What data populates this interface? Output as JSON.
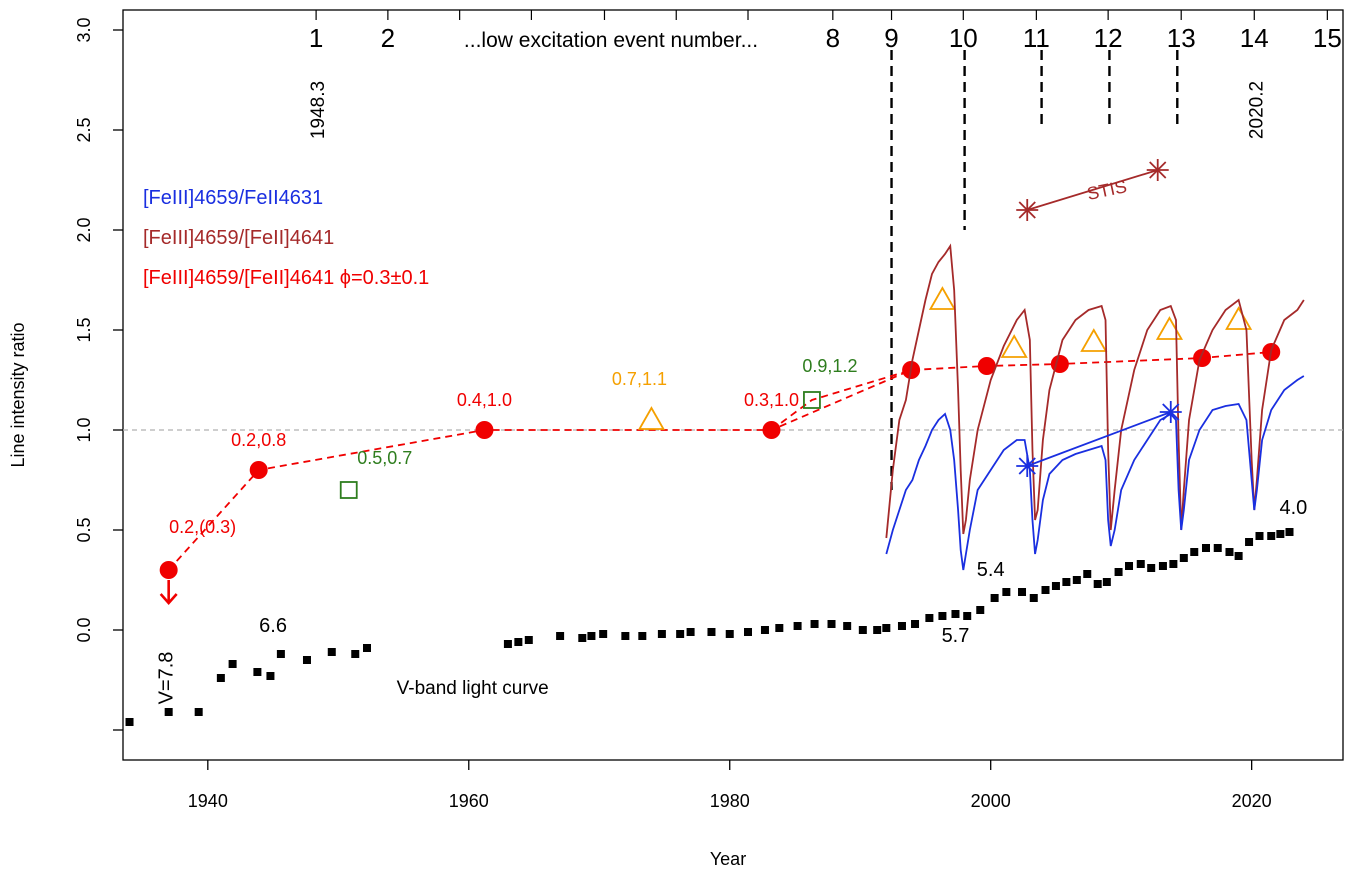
{
  "chart_data": {
    "type": "scatter",
    "xlabel": "Year",
    "ylabel": "Line intensity ratio",
    "xlim": [
      1933.5,
      2027
    ],
    "ylim": [
      -0.65,
      3.1
    ],
    "x_ticks": [
      1940,
      1960,
      1980,
      2000,
      2020
    ],
    "y_ticks": [
      0.0,
      0.5,
      1.0,
      1.5,
      2.0,
      2.5,
      3.0
    ],
    "y_tick_labels": [
      "0.0",
      "0.5",
      "1.0",
      "1.5",
      "2.0",
      "2.5",
      "3.0"
    ],
    "reference_line_y": 1.0,
    "legend_placement": "top-left",
    "legend": [
      {
        "label": "[FeIII]4659/FeII4631",
        "color": "#1a2fe0"
      },
      {
        "label": "[FeIII]4659/[FeII]4641",
        "color": "#a52a2a"
      },
      {
        "label": "[FeIII]4659/[FeII]4641  ϕ=0.3±0.1",
        "color": "#f00000"
      }
    ],
    "top_axis": {
      "title": "...low excitation event number...",
      "events": [
        {
          "label": "1",
          "year": 1948.3
        },
        {
          "label": "2",
          "year": 1953.8
        },
        {
          "label": "8",
          "year": 1987.9
        },
        {
          "label": "9",
          "year": 1992.4
        },
        {
          "label": "10",
          "year": 1997.9
        },
        {
          "label": "11",
          "year": 2003.5
        },
        {
          "label": "12",
          "year": 2009.0
        },
        {
          "label": "13",
          "year": 2014.6
        },
        {
          "label": "14",
          "year": 2020.2
        },
        {
          "label": "15",
          "year": 2025.8
        }
      ],
      "extra_ticks": [
        1959.3,
        1964.8,
        1970.4,
        1975.9,
        1981.4
      ],
      "date_labels": [
        {
          "text": "1948.3",
          "year": 1948.3
        },
        {
          "text": "2020.2",
          "year": 2020.2
        }
      ],
      "dashed_markers": [
        {
          "year": 1992.4,
          "to": 0.7
        },
        {
          "year": 1998.0,
          "to": 2.0
        },
        {
          "year": 2003.9,
          "to": 2.5
        },
        {
          "year": 2009.1,
          "to": 2.5
        },
        {
          "year": 2014.3,
          "to": 2.5
        }
      ]
    },
    "series": [
      {
        "name": "[FeIII]4659/[FeII]4641  ϕ=0.3±0.1",
        "color": "#f00000",
        "marker": "filled-circle",
        "line": "dashed",
        "x": [
          1937.0,
          1943.9,
          1961.2,
          1983.2,
          1993.9,
          1999.7,
          2005.3,
          2016.2,
          2021.5
        ],
        "y": [
          0.3,
          0.8,
          1.0,
          1.0,
          1.3,
          1.32,
          1.33,
          1.36,
          1.39
        ],
        "dashed_path": [
          [
            1937.0,
            0.3
          ],
          [
            1943.9,
            0.8
          ],
          [
            1961.2,
            1.0
          ],
          [
            1983.2,
            1.0
          ],
          [
            1993.9,
            1.3
          ],
          [
            1999.7,
            1.32
          ],
          [
            2005.3,
            1.33
          ],
          [
            2016.2,
            1.36
          ],
          [
            2021.5,
            1.39
          ]
        ],
        "extra_dashed": [
          [
            1983.2,
            1.0
          ],
          [
            1986.3,
            1.15
          ],
          [
            1993.9,
            1.3
          ]
        ],
        "upper_limit_at": 1937.0,
        "point_labels": [
          {
            "text": "0.2,(0.3)",
            "x": 1937.0,
            "y": 0.3
          },
          {
            "text": "0.2,0.8",
            "x": 1943.9,
            "y": 0.8
          },
          {
            "text": "0.4,1.0",
            "x": 1961.2,
            "y": 1.0
          },
          {
            "text": "0.3,1.0",
            "x": 1983.2,
            "y": 1.0
          }
        ]
      },
      {
        "name": "0.5,0.7 / 0.9,1.2",
        "color": "#2e7d1e",
        "marker": "open-square",
        "x": [
          1950.8,
          1986.3
        ],
        "y": [
          0.7,
          1.15
        ],
        "point_labels": [
          {
            "text": "0.5,0.7",
            "x": 1950.8,
            "y": 0.7
          },
          {
            "text": "0.9,1.2",
            "x": 1986.3,
            "y": 1.15
          }
        ]
      },
      {
        "name": "0.7,1.1",
        "color": "#f5a000",
        "marker": "open-triangle",
        "x": [
          1974.0,
          1996.3,
          2001.8,
          2007.9,
          2013.7,
          2019.0
        ],
        "y": [
          1.05,
          1.65,
          1.41,
          1.44,
          1.5,
          1.55
        ],
        "point_labels": [
          {
            "text": "0.7,1.1",
            "x": 1974.0,
            "y": 1.05
          }
        ]
      },
      {
        "name": "STIS",
        "color": "#a52a2a",
        "marker": "asterisk",
        "x": [
          2002.8,
          2012.8
        ],
        "y": [
          2.1,
          2.3
        ],
        "label": "STIS"
      },
      {
        "name": "[FeIII]4659/[FeII]4641",
        "color": "#a52a2a",
        "marker": "line",
        "x": [
          1992.0,
          1992.5,
          1993.0,
          1993.5,
          1994.0,
          1994.5,
          1995.0,
          1995.5,
          1996.0,
          1996.5,
          1996.9,
          1997.2,
          1997.5,
          1997.7,
          1997.9,
          1998.1,
          1998.4,
          1999.0,
          2000.0,
          2001.0,
          2002.0,
          2002.6,
          2003.0,
          2003.2,
          2003.4,
          2003.6,
          2004.0,
          2004.5,
          2005.5,
          2006.5,
          2007.5,
          2008.5,
          2008.8,
          2009.0,
          2009.2,
          2009.5,
          2010.0,
          2011.0,
          2012.0,
          2013.0,
          2013.8,
          2014.2,
          2014.4,
          2014.6,
          2014.8,
          2015.2,
          2016.0,
          2017.0,
          2018.0,
          2019.0,
          2019.6,
          2020.0,
          2020.2,
          2020.4,
          2020.8,
          2021.5,
          2022.5,
          2023.5,
          2024.0
        ],
        "y": [
          0.46,
          0.8,
          1.05,
          1.15,
          1.35,
          1.5,
          1.65,
          1.78,
          1.84,
          1.88,
          1.92,
          1.7,
          1.2,
          0.8,
          0.48,
          0.55,
          0.75,
          1.0,
          1.25,
          1.42,
          1.55,
          1.6,
          1.45,
          0.9,
          0.55,
          0.6,
          0.95,
          1.2,
          1.45,
          1.55,
          1.6,
          1.62,
          1.55,
          0.9,
          0.5,
          0.7,
          1.0,
          1.3,
          1.5,
          1.6,
          1.62,
          1.55,
          0.95,
          0.5,
          0.7,
          1.05,
          1.35,
          1.5,
          1.6,
          1.65,
          1.5,
          0.85,
          0.6,
          0.75,
          1.1,
          1.4,
          1.55,
          1.6,
          1.65
        ]
      },
      {
        "name": "[FeIII]4659/FeII4631",
        "color": "#1a2fe0",
        "marker": "line",
        "x": [
          1992.0,
          1992.5,
          1993.0,
          1993.5,
          1994.0,
          1994.5,
          1995.0,
          1995.5,
          1996.0,
          1996.5,
          1996.9,
          1997.2,
          1997.5,
          1997.7,
          1997.9,
          1998.1,
          1998.4,
          1999.0,
          2000.0,
          2001.0,
          2002.0,
          2002.6,
          2003.0,
          2003.2,
          2003.4,
          2003.6,
          2004.0,
          2004.5,
          2005.5,
          2006.5,
          2007.5,
          2008.5,
          2008.8,
          2009.0,
          2009.2,
          2009.5,
          2010.0,
          2011.0,
          2012.0,
          2013.0,
          2013.8,
          2014.2,
          2014.4,
          2014.6,
          2014.8,
          2015.2,
          2016.0,
          2017.0,
          2018.0,
          2019.0,
          2019.6,
          2020.0,
          2020.2,
          2020.4,
          2020.8,
          2021.5,
          2022.5,
          2023.5,
          2024.0
        ],
        "y": [
          0.38,
          0.5,
          0.6,
          0.7,
          0.75,
          0.85,
          0.92,
          1.0,
          1.05,
          1.08,
          1.0,
          0.85,
          0.6,
          0.4,
          0.3,
          0.38,
          0.5,
          0.7,
          0.8,
          0.9,
          0.95,
          0.95,
          0.8,
          0.55,
          0.38,
          0.45,
          0.65,
          0.78,
          0.85,
          0.88,
          0.9,
          0.92,
          0.85,
          0.55,
          0.42,
          0.5,
          0.7,
          0.85,
          0.95,
          1.05,
          1.08,
          1.05,
          0.7,
          0.5,
          0.6,
          0.85,
          1.0,
          1.1,
          1.12,
          1.13,
          1.05,
          0.75,
          0.6,
          0.7,
          0.95,
          1.1,
          1.2,
          1.25,
          1.27
        ]
      },
      {
        "name": "[FeIII]4659/FeII4631 STIS",
        "color": "#1a2fe0",
        "marker": "asterisk",
        "x": [
          2002.8,
          2013.8
        ],
        "y": [
          0.82,
          1.09
        ]
      },
      {
        "name": "V-band light curve",
        "color": "#000000",
        "marker": "filled-square",
        "label": "V-band light curve",
        "x": [
          1934.0,
          1937.0,
          1939.3,
          1941.0,
          1941.9,
          1943.8,
          1944.8,
          1945.6,
          1947.6,
          1949.5,
          1951.3,
          1952.2,
          1963.0,
          1963.8,
          1964.6,
          1967.0,
          1968.7,
          1969.4,
          1970.3,
          1972.0,
          1973.3,
          1974.8,
          1976.2,
          1977.0,
          1978.6,
          1980.0,
          1981.4,
          1982.7,
          1983.8,
          1985.2,
          1986.5,
          1987.8,
          1989.0,
          1990.2,
          1991.3,
          1992.0,
          1993.2,
          1994.2,
          1995.3,
          1996.3,
          1997.3,
          1998.2,
          1999.2,
          2000.3,
          2001.2,
          2002.4,
          2003.3,
          2004.2,
          2005.0,
          2005.8,
          2006.6,
          2007.4,
          2008.2,
          2008.9,
          2009.8,
          2010.6,
          2011.5,
          2012.3,
          2013.2,
          2014.0,
          2014.8,
          2015.6,
          2016.5,
          2017.4,
          2018.3,
          2019.0,
          2019.8,
          2020.6,
          2021.5,
          2022.2,
          2022.9
        ],
        "y": [
          -0.46,
          -0.41,
          -0.41,
          -0.24,
          -0.17,
          -0.21,
          -0.23,
          -0.12,
          -0.15,
          -0.11,
          -0.12,
          -0.09,
          -0.07,
          -0.06,
          -0.05,
          -0.03,
          -0.04,
          -0.03,
          -0.02,
          -0.03,
          -0.03,
          -0.02,
          -0.02,
          -0.01,
          -0.01,
          -0.02,
          -0.01,
          0.0,
          0.01,
          0.02,
          0.03,
          0.03,
          0.02,
          0.0,
          0.0,
          0.01,
          0.02,
          0.03,
          0.06,
          0.07,
          0.08,
          0.07,
          0.1,
          0.16,
          0.19,
          0.19,
          0.16,
          0.2,
          0.22,
          0.24,
          0.25,
          0.28,
          0.23,
          0.24,
          0.29,
          0.32,
          0.33,
          0.31,
          0.32,
          0.33,
          0.36,
          0.39,
          0.41,
          0.41,
          0.39,
          0.37,
          0.44,
          0.47,
          0.47,
          0.48,
          0.49
        ]
      }
    ],
    "annotations": [
      {
        "text": "V=7.8",
        "x": 1937.3,
        "y": -0.24,
        "color": "#000000",
        "rotate": -90
      },
      {
        "text": "6.6",
        "x": 1945.0,
        "y": -0.01,
        "color": "#000000"
      },
      {
        "text": "5.4",
        "x": 2000.0,
        "y": 0.27,
        "color": "#000000"
      },
      {
        "text": "5.7",
        "x": 1997.3,
        "y": -0.06,
        "color": "#000000"
      },
      {
        "text": "4.0",
        "x": 2023.2,
        "y": 0.58,
        "color": "#000000"
      }
    ]
  }
}
